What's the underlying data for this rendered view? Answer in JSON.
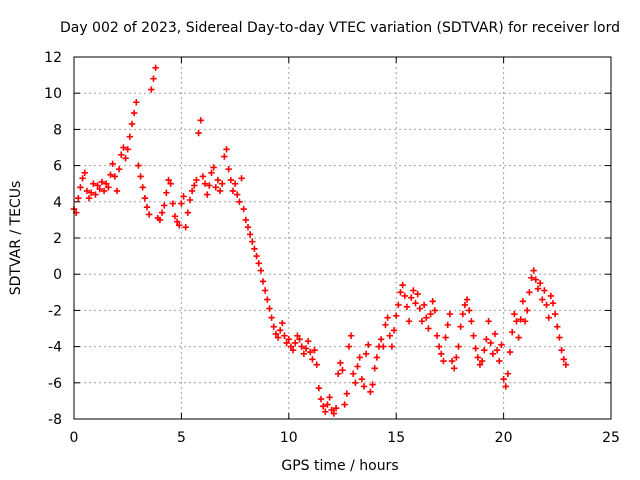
{
  "chart_data": {
    "type": "scatter",
    "title": "Day 002 of 2023, Sidereal Day-to-day VTEC variation (SDTVAR) for receiver lord",
    "xlabel": "GPS time / hours",
    "ylabel": "SDTVAR / TECUs",
    "xlim": [
      0,
      25
    ],
    "ylim": [
      -8,
      12
    ],
    "xticks": [
      0,
      5,
      10,
      15,
      20,
      25
    ],
    "yticks": [
      -8,
      -6,
      -4,
      -2,
      0,
      2,
      4,
      6,
      8,
      10,
      12
    ],
    "xtick_labels": [
      "0",
      "5",
      "10",
      "15",
      "20",
      "25"
    ],
    "ytick_labels": [
      "-8",
      "-6",
      "-4",
      "-2",
      "0",
      "2",
      "4",
      "6",
      "8",
      "10",
      "12"
    ],
    "grid": true,
    "marker": "+",
    "color": "#ff0000",
    "series": [
      {
        "name": "SDTVAR",
        "points": [
          [
            0.0,
            3.6
          ],
          [
            0.1,
            3.4
          ],
          [
            0.2,
            4.2
          ],
          [
            0.3,
            4.8
          ],
          [
            0.4,
            5.3
          ],
          [
            0.5,
            5.6
          ],
          [
            0.6,
            4.6
          ],
          [
            0.7,
            4.2
          ],
          [
            0.8,
            4.5
          ],
          [
            0.9,
            5.0
          ],
          [
            1.0,
            4.4
          ],
          [
            1.1,
            4.9
          ],
          [
            1.2,
            4.7
          ],
          [
            1.3,
            5.1
          ],
          [
            1.4,
            4.6
          ],
          [
            1.5,
            5.0
          ],
          [
            1.6,
            4.8
          ],
          [
            1.7,
            5.5
          ],
          [
            1.8,
            6.1
          ],
          [
            1.9,
            5.4
          ],
          [
            2.0,
            4.6
          ],
          [
            2.1,
            5.8
          ],
          [
            2.2,
            6.6
          ],
          [
            2.3,
            7.0
          ],
          [
            2.4,
            6.4
          ],
          [
            2.5,
            6.9
          ],
          [
            2.6,
            7.6
          ],
          [
            2.7,
            8.3
          ],
          [
            2.8,
            8.9
          ],
          [
            2.9,
            9.5
          ],
          [
            3.0,
            6.0
          ],
          [
            3.1,
            5.4
          ],
          [
            3.2,
            4.8
          ],
          [
            3.3,
            4.2
          ],
          [
            3.4,
            3.7
          ],
          [
            3.5,
            3.3
          ],
          [
            3.6,
            10.2
          ],
          [
            3.7,
            10.8
          ],
          [
            3.8,
            11.4
          ],
          [
            3.9,
            3.1
          ],
          [
            4.0,
            3.0
          ],
          [
            4.1,
            3.4
          ],
          [
            4.2,
            3.8
          ],
          [
            4.3,
            4.5
          ],
          [
            4.4,
            5.2
          ],
          [
            4.5,
            5.0
          ],
          [
            4.6,
            3.9
          ],
          [
            4.7,
            3.2
          ],
          [
            4.8,
            2.9
          ],
          [
            4.9,
            2.7
          ],
          [
            5.0,
            3.9
          ],
          [
            5.1,
            4.3
          ],
          [
            5.2,
            2.6
          ],
          [
            5.3,
            3.4
          ],
          [
            5.4,
            4.1
          ],
          [
            5.5,
            4.6
          ],
          [
            5.6,
            4.9
          ],
          [
            5.7,
            5.2
          ],
          [
            5.8,
            7.8
          ],
          [
            5.9,
            8.5
          ],
          [
            6.0,
            5.4
          ],
          [
            6.1,
            5.0
          ],
          [
            6.2,
            4.4
          ],
          [
            6.3,
            4.9
          ],
          [
            6.4,
            5.6
          ],
          [
            6.5,
            5.9
          ],
          [
            6.6,
            4.8
          ],
          [
            6.7,
            5.2
          ],
          [
            6.8,
            4.6
          ],
          [
            6.9,
            5.0
          ],
          [
            7.0,
            6.5
          ],
          [
            7.1,
            6.9
          ],
          [
            7.2,
            5.8
          ],
          [
            7.3,
            5.2
          ],
          [
            7.4,
            4.6
          ],
          [
            7.5,
            5.0
          ],
          [
            7.6,
            4.4
          ],
          [
            7.7,
            4.0
          ],
          [
            7.8,
            5.3
          ],
          [
            7.9,
            3.6
          ],
          [
            8.0,
            3.0
          ],
          [
            8.1,
            2.6
          ],
          [
            8.2,
            2.2
          ],
          [
            8.3,
            1.8
          ],
          [
            8.4,
            1.4
          ],
          [
            8.5,
            1.0
          ],
          [
            8.6,
            0.6
          ],
          [
            8.7,
            0.2
          ],
          [
            8.8,
            -0.4
          ],
          [
            8.9,
            -0.9
          ],
          [
            9.0,
            -1.4
          ],
          [
            9.1,
            -1.9
          ],
          [
            9.2,
            -2.4
          ],
          [
            9.3,
            -2.9
          ],
          [
            9.4,
            -3.3
          ],
          [
            9.5,
            -3.5
          ],
          [
            9.6,
            -3.1
          ],
          [
            9.7,
            -2.7
          ],
          [
            9.8,
            -3.4
          ],
          [
            9.9,
            -3.8
          ],
          [
            10.0,
            -3.6
          ],
          [
            10.1,
            -4.0
          ],
          [
            10.2,
            -4.2
          ],
          [
            10.3,
            -3.8
          ],
          [
            10.4,
            -3.4
          ],
          [
            10.5,
            -3.6
          ],
          [
            10.6,
            -4.0
          ],
          [
            10.7,
            -4.4
          ],
          [
            10.8,
            -4.1
          ],
          [
            10.9,
            -3.7
          ],
          [
            11.0,
            -4.3
          ],
          [
            11.1,
            -4.7
          ],
          [
            11.2,
            -4.2
          ],
          [
            11.3,
            -5.0
          ],
          [
            11.4,
            -6.3
          ],
          [
            11.5,
            -6.9
          ],
          [
            11.6,
            -7.3
          ],
          [
            11.7,
            -7.6
          ],
          [
            11.8,
            -7.2
          ],
          [
            11.9,
            -6.8
          ],
          [
            12.0,
            -7.5
          ],
          [
            12.1,
            -7.7
          ],
          [
            12.2,
            -7.4
          ],
          [
            12.3,
            -5.5
          ],
          [
            12.4,
            -4.9
          ],
          [
            12.5,
            -5.3
          ],
          [
            12.6,
            -7.2
          ],
          [
            12.7,
            -6.6
          ],
          [
            12.8,
            -4.0
          ],
          [
            12.9,
            -3.4
          ],
          [
            13.0,
            -5.5
          ],
          [
            13.1,
            -6.0
          ],
          [
            13.2,
            -5.1
          ],
          [
            13.3,
            -4.6
          ],
          [
            13.4,
            -5.8
          ],
          [
            13.5,
            -6.2
          ],
          [
            13.6,
            -4.4
          ],
          [
            13.7,
            -3.9
          ],
          [
            13.8,
            -6.5
          ],
          [
            13.9,
            -6.1
          ],
          [
            14.0,
            -5.2
          ],
          [
            14.1,
            -4.6
          ],
          [
            14.2,
            -4.0
          ],
          [
            14.3,
            -3.6
          ],
          [
            14.4,
            -4.0
          ],
          [
            14.5,
            -2.8
          ],
          [
            14.6,
            -2.4
          ],
          [
            14.7,
            -3.4
          ],
          [
            14.8,
            -4.0
          ],
          [
            14.9,
            -3.1
          ],
          [
            15.0,
            -2.3
          ],
          [
            15.1,
            -1.7
          ],
          [
            15.2,
            -1.0
          ],
          [
            15.3,
            -0.6
          ],
          [
            15.4,
            -1.2
          ],
          [
            15.5,
            -1.8
          ],
          [
            15.6,
            -2.6
          ],
          [
            15.7,
            -1.3
          ],
          [
            15.8,
            -0.9
          ],
          [
            15.9,
            -1.6
          ],
          [
            16.0,
            -1.1
          ],
          [
            16.1,
            -1.9
          ],
          [
            16.2,
            -2.6
          ],
          [
            16.3,
            -1.7
          ],
          [
            16.4,
            -2.4
          ],
          [
            16.5,
            -3.0
          ],
          [
            16.6,
            -2.2
          ],
          [
            16.7,
            -1.5
          ],
          [
            16.8,
            -2.0
          ],
          [
            16.9,
            -3.4
          ],
          [
            17.0,
            -4.0
          ],
          [
            17.1,
            -4.4
          ],
          [
            17.2,
            -4.8
          ],
          [
            17.3,
            -3.5
          ],
          [
            17.4,
            -2.8
          ],
          [
            17.5,
            -2.2
          ],
          [
            17.6,
            -4.8
          ],
          [
            17.7,
            -5.2
          ],
          [
            17.8,
            -4.6
          ],
          [
            17.9,
            -4.0
          ],
          [
            18.0,
            -2.9
          ],
          [
            18.1,
            -2.2
          ],
          [
            18.2,
            -1.7
          ],
          [
            18.3,
            -1.4
          ],
          [
            18.4,
            -2.0
          ],
          [
            18.5,
            -2.6
          ],
          [
            18.6,
            -3.4
          ],
          [
            18.7,
            -4.1
          ],
          [
            18.8,
            -4.6
          ],
          [
            18.9,
            -5.0
          ],
          [
            19.0,
            -4.8
          ],
          [
            19.1,
            -4.2
          ],
          [
            19.2,
            -3.6
          ],
          [
            19.3,
            -2.6
          ],
          [
            19.4,
            -3.8
          ],
          [
            19.5,
            -4.4
          ],
          [
            19.6,
            -3.3
          ],
          [
            19.7,
            -4.2
          ],
          [
            19.8,
            -4.8
          ],
          [
            19.9,
            -3.9
          ],
          [
            20.0,
            -5.8
          ],
          [
            20.1,
            -6.2
          ],
          [
            20.2,
            -5.5
          ],
          [
            20.3,
            -4.3
          ],
          [
            20.4,
            -3.2
          ],
          [
            20.5,
            -2.2
          ],
          [
            20.6,
            -2.6
          ],
          [
            20.7,
            -3.5
          ],
          [
            20.8,
            -2.5
          ],
          [
            20.9,
            -1.5
          ],
          [
            21.0,
            -2.6
          ],
          [
            21.1,
            -2.0
          ],
          [
            21.2,
            -1.0
          ],
          [
            21.3,
            -0.2
          ],
          [
            21.4,
            0.2
          ],
          [
            21.5,
            -0.3
          ],
          [
            21.6,
            -0.8
          ],
          [
            21.7,
            -0.5
          ],
          [
            21.8,
            -1.4
          ],
          [
            21.9,
            -0.9
          ],
          [
            22.0,
            -1.7
          ],
          [
            22.1,
            -2.4
          ],
          [
            22.2,
            -1.2
          ],
          [
            22.3,
            -1.6
          ],
          [
            22.4,
            -2.2
          ],
          [
            22.5,
            -2.9
          ],
          [
            22.6,
            -3.5
          ],
          [
            22.7,
            -4.2
          ],
          [
            22.8,
            -4.7
          ],
          [
            22.9,
            -5.0
          ]
        ]
      }
    ]
  }
}
